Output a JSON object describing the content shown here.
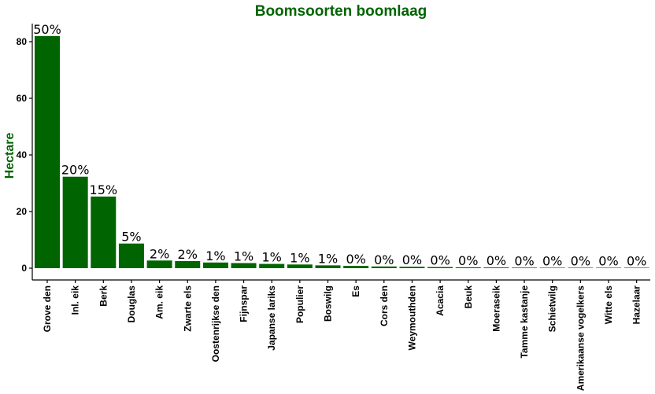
{
  "chart_data": {
    "type": "bar",
    "title": "Boomsoorten boomlaag",
    "xlabel": "",
    "ylabel": "Hectare",
    "ylim": [
      0,
      87
    ],
    "yticks": [
      0,
      20,
      40,
      60,
      80
    ],
    "grid": false,
    "legend": "none",
    "bar_color": "#006400",
    "title_color": "#006400",
    "categories": [
      "Grove den",
      "Inl. eik",
      "Berk",
      "Douglas",
      "Am. eik",
      "Zwarte els",
      "Oostenrijkse den",
      "Fijnspar",
      "Japanse lariks",
      "Populier",
      "Boswilg",
      "Es",
      "Cors den",
      "Weymouthden",
      "Acacia",
      "Beuk",
      "Moeraseik",
      "Tamme kastanje",
      "Schietwilg",
      "Amerikaanse vogelkers",
      "Witte els",
      "Hazelaar"
    ],
    "values": [
      82,
      32.3,
      25.3,
      8.7,
      2.7,
      2.5,
      2.0,
      1.8,
      1.5,
      1.3,
      1.0,
      0.8,
      0.6,
      0.5,
      0.4,
      0.3,
      0.25,
      0.2,
      0.15,
      0.05,
      0.03,
      0.02
    ],
    "data_labels": [
      "50%",
      "20%",
      "15%",
      "5%",
      "2%",
      "2%",
      "1%",
      "1%",
      "1%",
      "1%",
      "1%",
      "0%",
      "0%",
      "0%",
      "0%",
      "0%",
      "0%",
      "0%",
      "0%",
      "0%",
      "0%",
      "0%"
    ]
  }
}
